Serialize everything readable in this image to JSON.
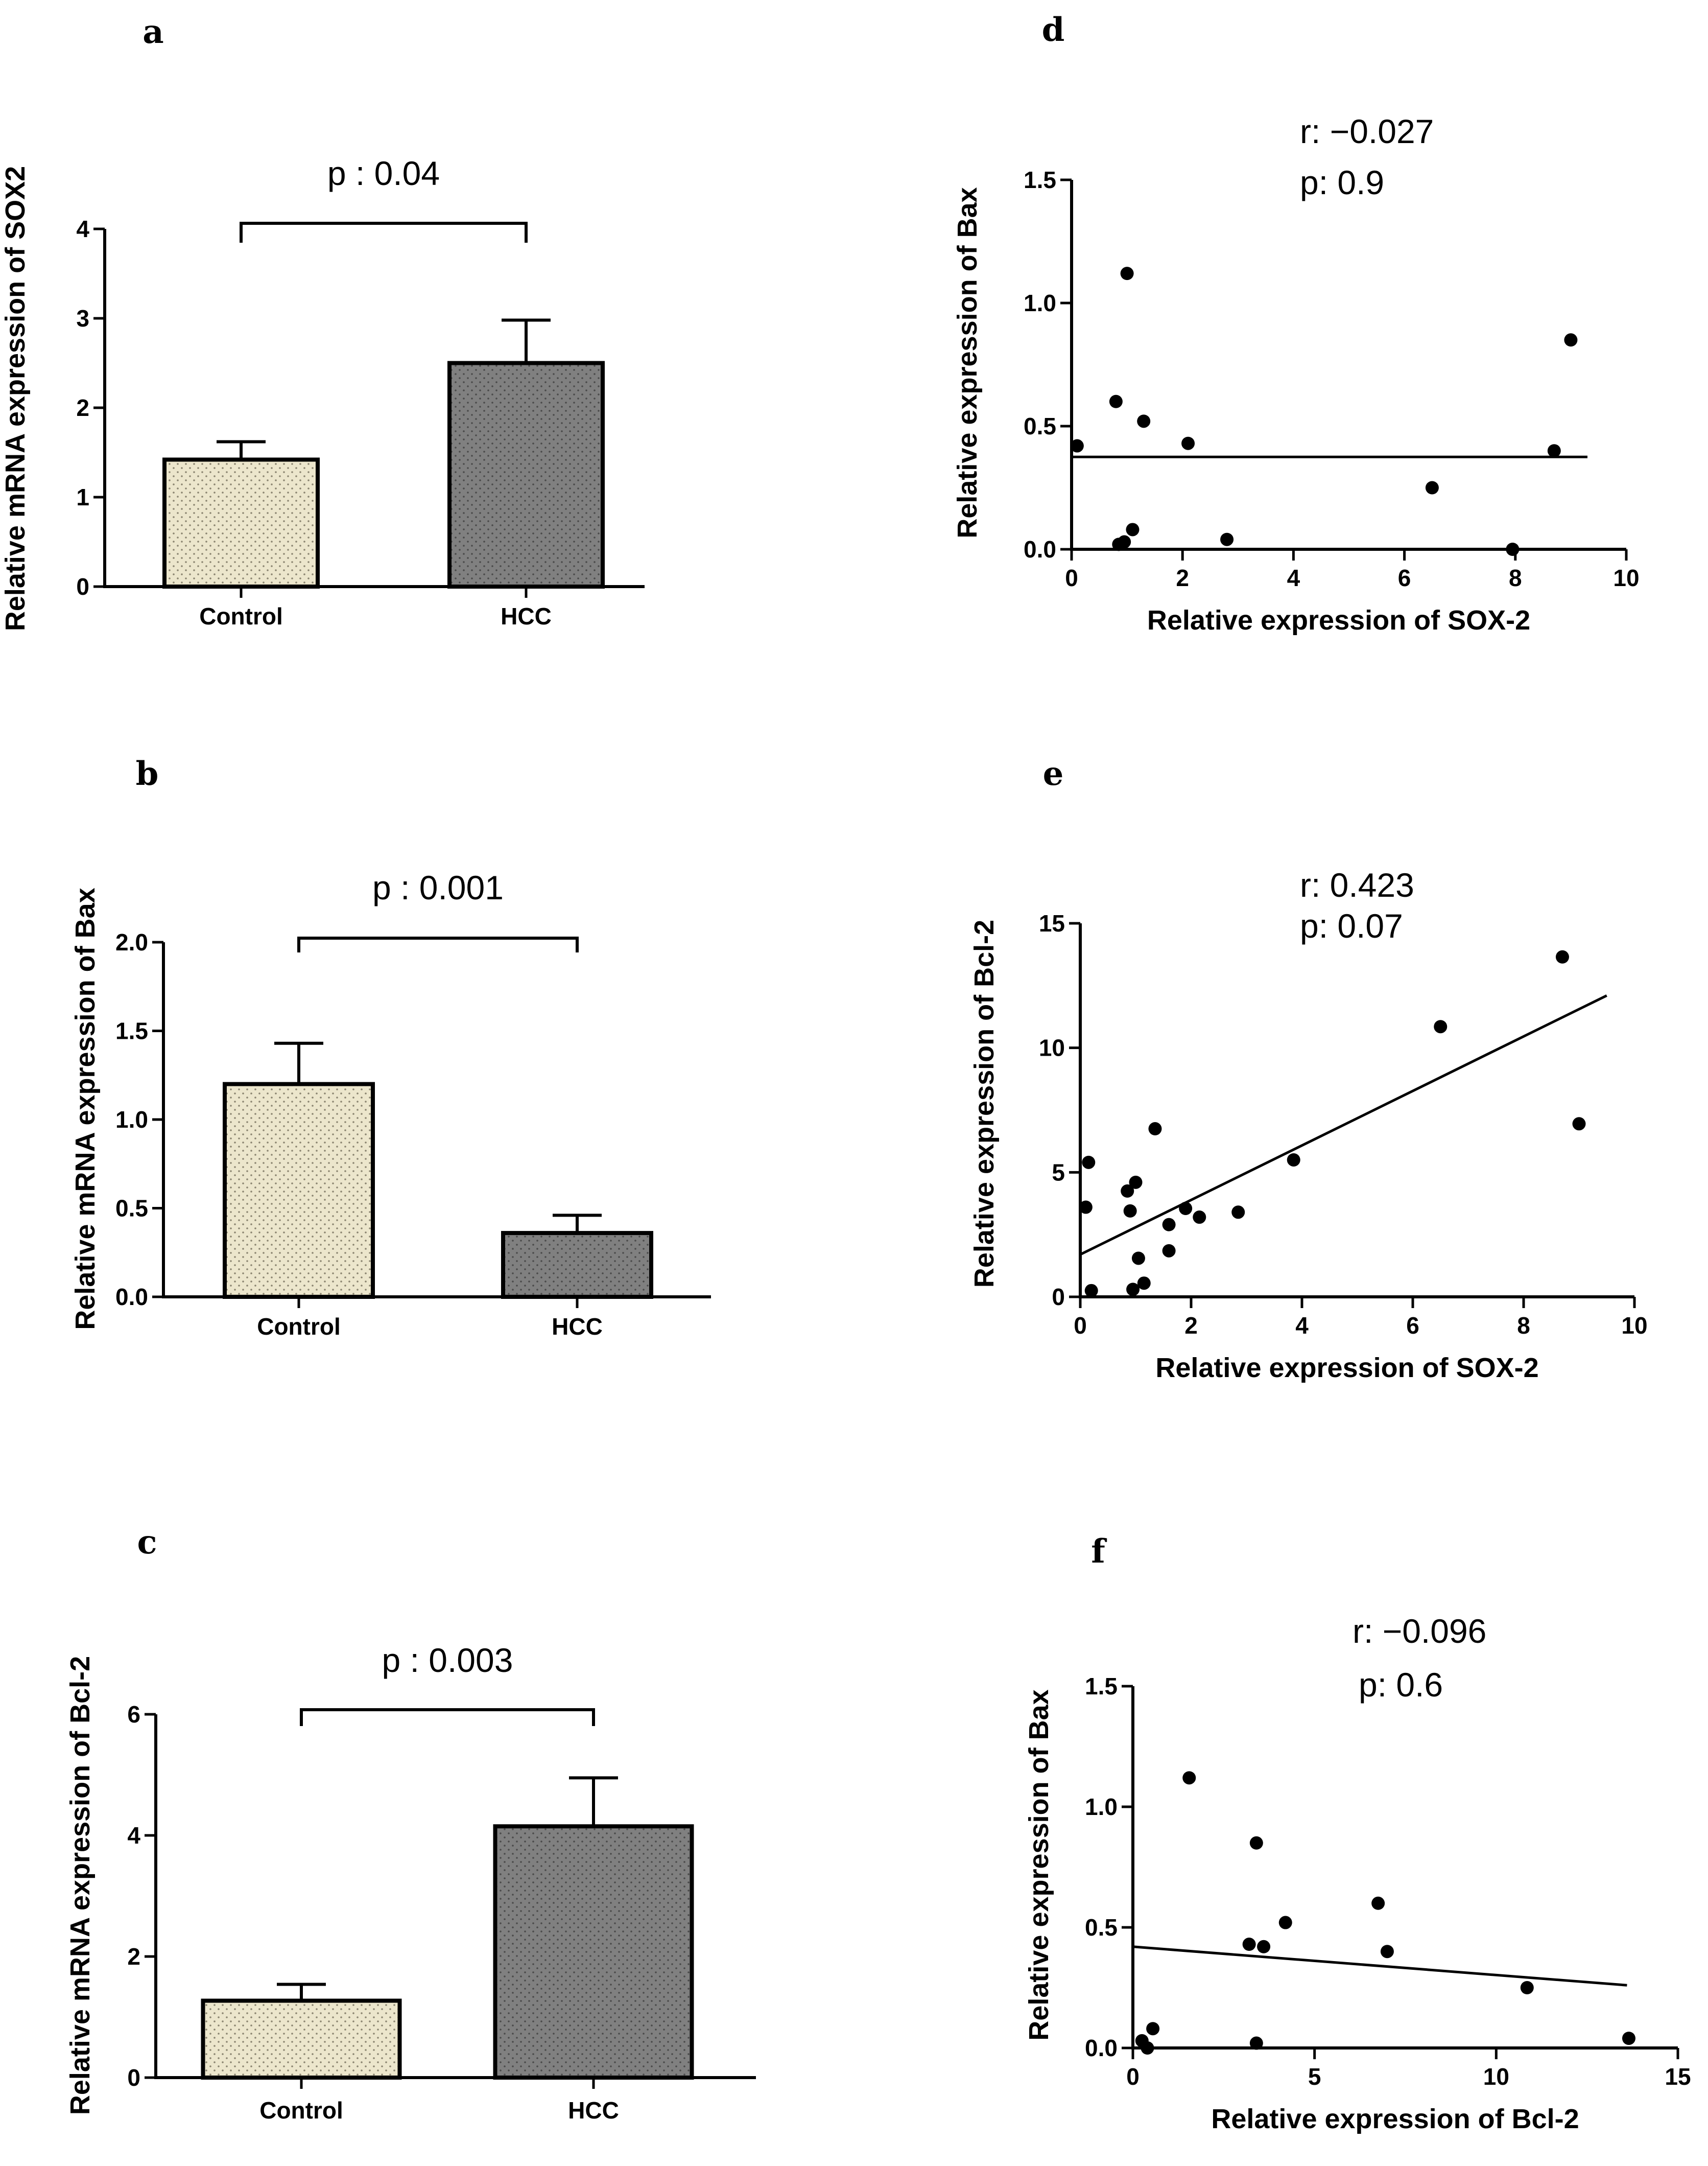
{
  "colors": {
    "control_fill": "#ece6cc",
    "hcc_fill": "#808080",
    "ink": "#000000"
  },
  "chart_data": [
    {
      "panel": "a",
      "type": "bar",
      "categories": [
        "Control",
        "HCC"
      ],
      "values": [
        1.42,
        2.5
      ],
      "errors": [
        0.2,
        0.48
      ],
      "ylabel": "Relative mRNA expression of SOX2",
      "ylim": [
        0,
        4
      ],
      "yticks": [
        "0",
        "1",
        "2",
        "3",
        "4"
      ],
      "ytick_values": [
        0,
        1,
        2,
        3,
        4
      ],
      "annotation": "p : 0.04"
    },
    {
      "panel": "b",
      "type": "bar",
      "categories": [
        "Control",
        "HCC"
      ],
      "values": [
        1.2,
        0.36
      ],
      "errors": [
        0.23,
        0.1
      ],
      "ylabel": "Relative mRNA expression of Bax",
      "ylim": [
        0,
        2.0
      ],
      "yticks": [
        "0.0",
        "0.5",
        "1.0",
        "1.5",
        "2.0"
      ],
      "ytick_values": [
        0,
        0.5,
        1.0,
        1.5,
        2.0
      ],
      "annotation": "p : 0.001"
    },
    {
      "panel": "c",
      "type": "bar",
      "categories": [
        "Control",
        "HCC"
      ],
      "values": [
        1.27,
        4.15
      ],
      "errors": [
        0.27,
        0.8
      ],
      "ylabel": "Relative mRNA expression of Bcl-2",
      "ylim": [
        0,
        6
      ],
      "yticks": [
        "0",
        "2",
        "4",
        "6"
      ],
      "ytick_values": [
        0,
        2,
        4,
        6
      ],
      "annotation": "p : 0.003"
    },
    {
      "panel": "d",
      "type": "scatter",
      "xlabel": "Relative expression of SOX-2",
      "ylabel": "Relative expression of Bax",
      "xlim": [
        0,
        10
      ],
      "xticks": [
        "0",
        "2",
        "4",
        "6",
        "8",
        "10"
      ],
      "xtick_values": [
        0,
        2,
        4,
        6,
        8,
        10
      ],
      "ylim": [
        0,
        1.5
      ],
      "yticks": [
        "0.0",
        "0.5",
        "1.0",
        "1.5"
      ],
      "ytick_values": [
        0,
        0.5,
        1.0,
        1.5
      ],
      "r_text": "r: −0.027",
      "p_text": "p: 0.9",
      "points": [
        [
          0.1,
          0.42
        ],
        [
          0.8,
          0.6
        ],
        [
          0.85,
          0.02
        ],
        [
          0.95,
          0.03
        ],
        [
          1.0,
          1.12
        ],
        [
          1.1,
          0.08
        ],
        [
          1.3,
          0.52
        ],
        [
          2.1,
          0.43
        ],
        [
          2.8,
          0.04
        ],
        [
          6.5,
          0.25
        ],
        [
          7.95,
          0.0
        ],
        [
          8.7,
          0.4
        ],
        [
          9.0,
          0.85
        ]
      ],
      "fit": {
        "x": [
          0,
          9.3
        ],
        "y": [
          0.375,
          0.375
        ]
      }
    },
    {
      "panel": "e",
      "type": "scatter",
      "xlabel": "Relative expression of SOX-2",
      "ylabel": "Relative expression of Bcl-2",
      "xlim": [
        0,
        10
      ],
      "xticks": [
        "0",
        "2",
        "4",
        "6",
        "8",
        "10"
      ],
      "xtick_values": [
        0,
        2,
        4,
        6,
        8,
        10
      ],
      "ylim": [
        0,
        15
      ],
      "yticks": [
        "0",
        "5",
        "10",
        "15"
      ],
      "ytick_values": [
        0,
        5,
        10,
        15
      ],
      "r_text": "r: 0.423",
      "p_text": "p: 0.07",
      "points": [
        [
          0.15,
          5.4
        ],
        [
          0.1,
          3.6
        ],
        [
          0.2,
          0.25
        ],
        [
          0.85,
          4.25
        ],
        [
          0.9,
          3.45
        ],
        [
          1.0,
          4.6
        ],
        [
          0.95,
          0.3
        ],
        [
          1.05,
          1.55
        ],
        [
          1.15,
          0.55
        ],
        [
          1.35,
          6.75
        ],
        [
          1.6,
          2.9
        ],
        [
          1.6,
          1.85
        ],
        [
          1.9,
          3.55
        ],
        [
          2.15,
          3.2
        ],
        [
          2.85,
          3.4
        ],
        [
          3.85,
          5.5
        ],
        [
          6.5,
          10.85
        ],
        [
          8.7,
          13.65
        ],
        [
          9.0,
          6.95
        ]
      ],
      "fit": {
        "x": [
          0,
          9.5
        ],
        "y": [
          1.7,
          12.1
        ]
      }
    },
    {
      "panel": "f",
      "type": "scatter",
      "xlabel": "Relative expression of Bcl-2",
      "ylabel": "Relative expression of Bax",
      "xlim": [
        0,
        15
      ],
      "xticks": [
        "0",
        "5",
        "10",
        "15"
      ],
      "xtick_values": [
        0,
        5,
        10,
        15
      ],
      "ylim": [
        0,
        1.5
      ],
      "yticks": [
        "0.0",
        "0.5",
        "1.0",
        "1.5"
      ],
      "ytick_values": [
        0,
        0.5,
        1.0,
        1.5
      ],
      "r_text": "r: −0.096",
      "p_text": "p: 0.6",
      "points": [
        [
          0.25,
          0.03
        ],
        [
          0.4,
          0.0
        ],
        [
          0.55,
          0.08
        ],
        [
          1.55,
          1.12
        ],
        [
          3.2,
          0.43
        ],
        [
          3.4,
          0.85
        ],
        [
          3.6,
          0.42
        ],
        [
          4.2,
          0.52
        ],
        [
          6.75,
          0.6
        ],
        [
          7.0,
          0.4
        ],
        [
          10.85,
          0.25
        ],
        [
          13.65,
          0.04
        ],
        [
          3.4,
          0.02
        ]
      ],
      "fit": {
        "x": [
          0,
          13.6
        ],
        "y": [
          0.42,
          0.26
        ]
      }
    }
  ]
}
